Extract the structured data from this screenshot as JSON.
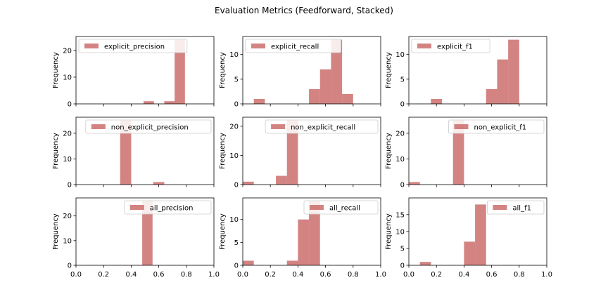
{
  "figure": {
    "title": "Evaluation Metrics (Feedforward, Stacked)"
  },
  "colors": {
    "bar": "#c0504d",
    "bar_alpha": 0.7,
    "axis": "#000000",
    "background": "#ffffff"
  },
  "chart_data": [
    {
      "type": "bar",
      "histogram": true,
      "panel": "explicit_precision",
      "xlim": [
        0,
        1
      ],
      "ylim": [
        0,
        25.2
      ],
      "yticks": [
        0,
        10,
        20
      ],
      "ylabel": "Frequency",
      "legend": "upper left",
      "series": [
        {
          "name": "explicit_precision",
          "bins": [
            [
              0.49,
              0.565,
              1
            ],
            [
              0.64,
              0.715,
              1
            ],
            [
              0.715,
              0.79,
              24
            ]
          ]
        }
      ]
    },
    {
      "type": "bar",
      "histogram": true,
      "panel": "explicit_recall",
      "xlim": [
        0,
        1
      ],
      "ylim": [
        0,
        13.65
      ],
      "yticks": [
        0,
        5,
        10
      ],
      "ylabel": "Frequency",
      "legend": "upper left",
      "series": [
        {
          "name": "explicit_recall",
          "bins": [
            [
              0.08,
              0.16,
              1
            ],
            [
              0.48,
              0.56,
              3
            ],
            [
              0.56,
              0.64,
              7
            ],
            [
              0.64,
              0.72,
              13
            ],
            [
              0.72,
              0.8,
              2
            ]
          ]
        }
      ]
    },
    {
      "type": "bar",
      "histogram": true,
      "panel": "explicit_f1",
      "xlim": [
        0,
        1
      ],
      "ylim": [
        0,
        13.65
      ],
      "yticks": [
        0,
        5,
        10
      ],
      "ylabel": "Frequency",
      "legend": "upper left",
      "series": [
        {
          "name": "explicit_f1",
          "bins": [
            [
              0.16,
              0.24,
              1
            ],
            [
              0.56,
              0.64,
              3
            ],
            [
              0.64,
              0.72,
              9
            ],
            [
              0.72,
              0.8,
              13
            ]
          ]
        }
      ]
    },
    {
      "type": "bar",
      "histogram": true,
      "panel": "non_explicit_precision",
      "xlim": [
        0,
        1
      ],
      "ylim": [
        0,
        26.25
      ],
      "yticks": [
        0,
        10,
        20
      ],
      "ylabel": "Frequency",
      "legend": "upper right",
      "series": [
        {
          "name": "non_explicit_precision",
          "bins": [
            [
              0.32,
              0.4,
              25
            ],
            [
              0.56,
              0.64,
              1
            ]
          ]
        }
      ]
    },
    {
      "type": "bar",
      "histogram": true,
      "panel": "non_explicit_recall",
      "xlim": [
        0,
        1
      ],
      "ylim": [
        0,
        23.1
      ],
      "yticks": [
        0,
        10,
        20
      ],
      "ylabel": "Frequency",
      "legend": "upper right",
      "series": [
        {
          "name": "non_explicit_recall",
          "bins": [
            [
              0.0,
              0.08,
              1
            ],
            [
              0.24,
              0.32,
              3
            ],
            [
              0.32,
              0.4,
              22
            ]
          ]
        }
      ]
    },
    {
      "type": "bar",
      "histogram": true,
      "panel": "non_explicit_f1",
      "xlim": [
        0,
        1
      ],
      "ylim": [
        0,
        26.25
      ],
      "yticks": [
        0,
        10,
        20
      ],
      "ylabel": "Frequency",
      "legend": "upper right",
      "series": [
        {
          "name": "non_explicit_f1",
          "bins": [
            [
              0.0,
              0.08,
              1
            ],
            [
              0.32,
              0.4,
              25
            ]
          ]
        }
      ]
    },
    {
      "type": "bar",
      "histogram": true,
      "panel": "all_precision",
      "xlim": [
        0,
        1
      ],
      "ylim": [
        0,
        27.3
      ],
      "yticks": [
        0,
        10,
        20
      ],
      "ylabel": "Frequency",
      "legend": "upper right",
      "xticks": [
        "0.0",
        "0.2",
        "0.4",
        "0.6",
        "0.8",
        "1.0"
      ],
      "series": [
        {
          "name": "all_precision",
          "bins": [
            [
              0.48,
              0.555,
              26
            ]
          ]
        }
      ]
    },
    {
      "type": "bar",
      "histogram": true,
      "panel": "all_recall",
      "xlim": [
        0,
        1
      ],
      "ylim": [
        0,
        14.7
      ],
      "yticks": [
        0,
        5,
        10
      ],
      "ylabel": "Frequency",
      "legend": "upper right",
      "xticks": [
        "0.0",
        "0.2",
        "0.4",
        "0.6",
        "0.8",
        "1.0"
      ],
      "series": [
        {
          "name": "all_recall",
          "bins": [
            [
              0.0,
              0.08,
              1
            ],
            [
              0.32,
              0.4,
              1
            ],
            [
              0.4,
              0.48,
              10
            ],
            [
              0.48,
              0.56,
              14
            ]
          ]
        }
      ]
    },
    {
      "type": "bar",
      "histogram": true,
      "panel": "all_f1",
      "xlim": [
        0,
        1
      ],
      "ylim": [
        0,
        19.95
      ],
      "yticks": [
        0,
        5,
        10,
        15
      ],
      "ylabel": "Frequency",
      "legend": "upper right",
      "xticks": [
        "0.0",
        "0.2",
        "0.4",
        "0.6",
        "0.8",
        "1.0"
      ],
      "series": [
        {
          "name": "all_f1",
          "bins": [
            [
              0.08,
              0.16,
              1
            ],
            [
              0.4,
              0.48,
              7
            ],
            [
              0.48,
              0.56,
              18
            ]
          ]
        }
      ]
    }
  ]
}
